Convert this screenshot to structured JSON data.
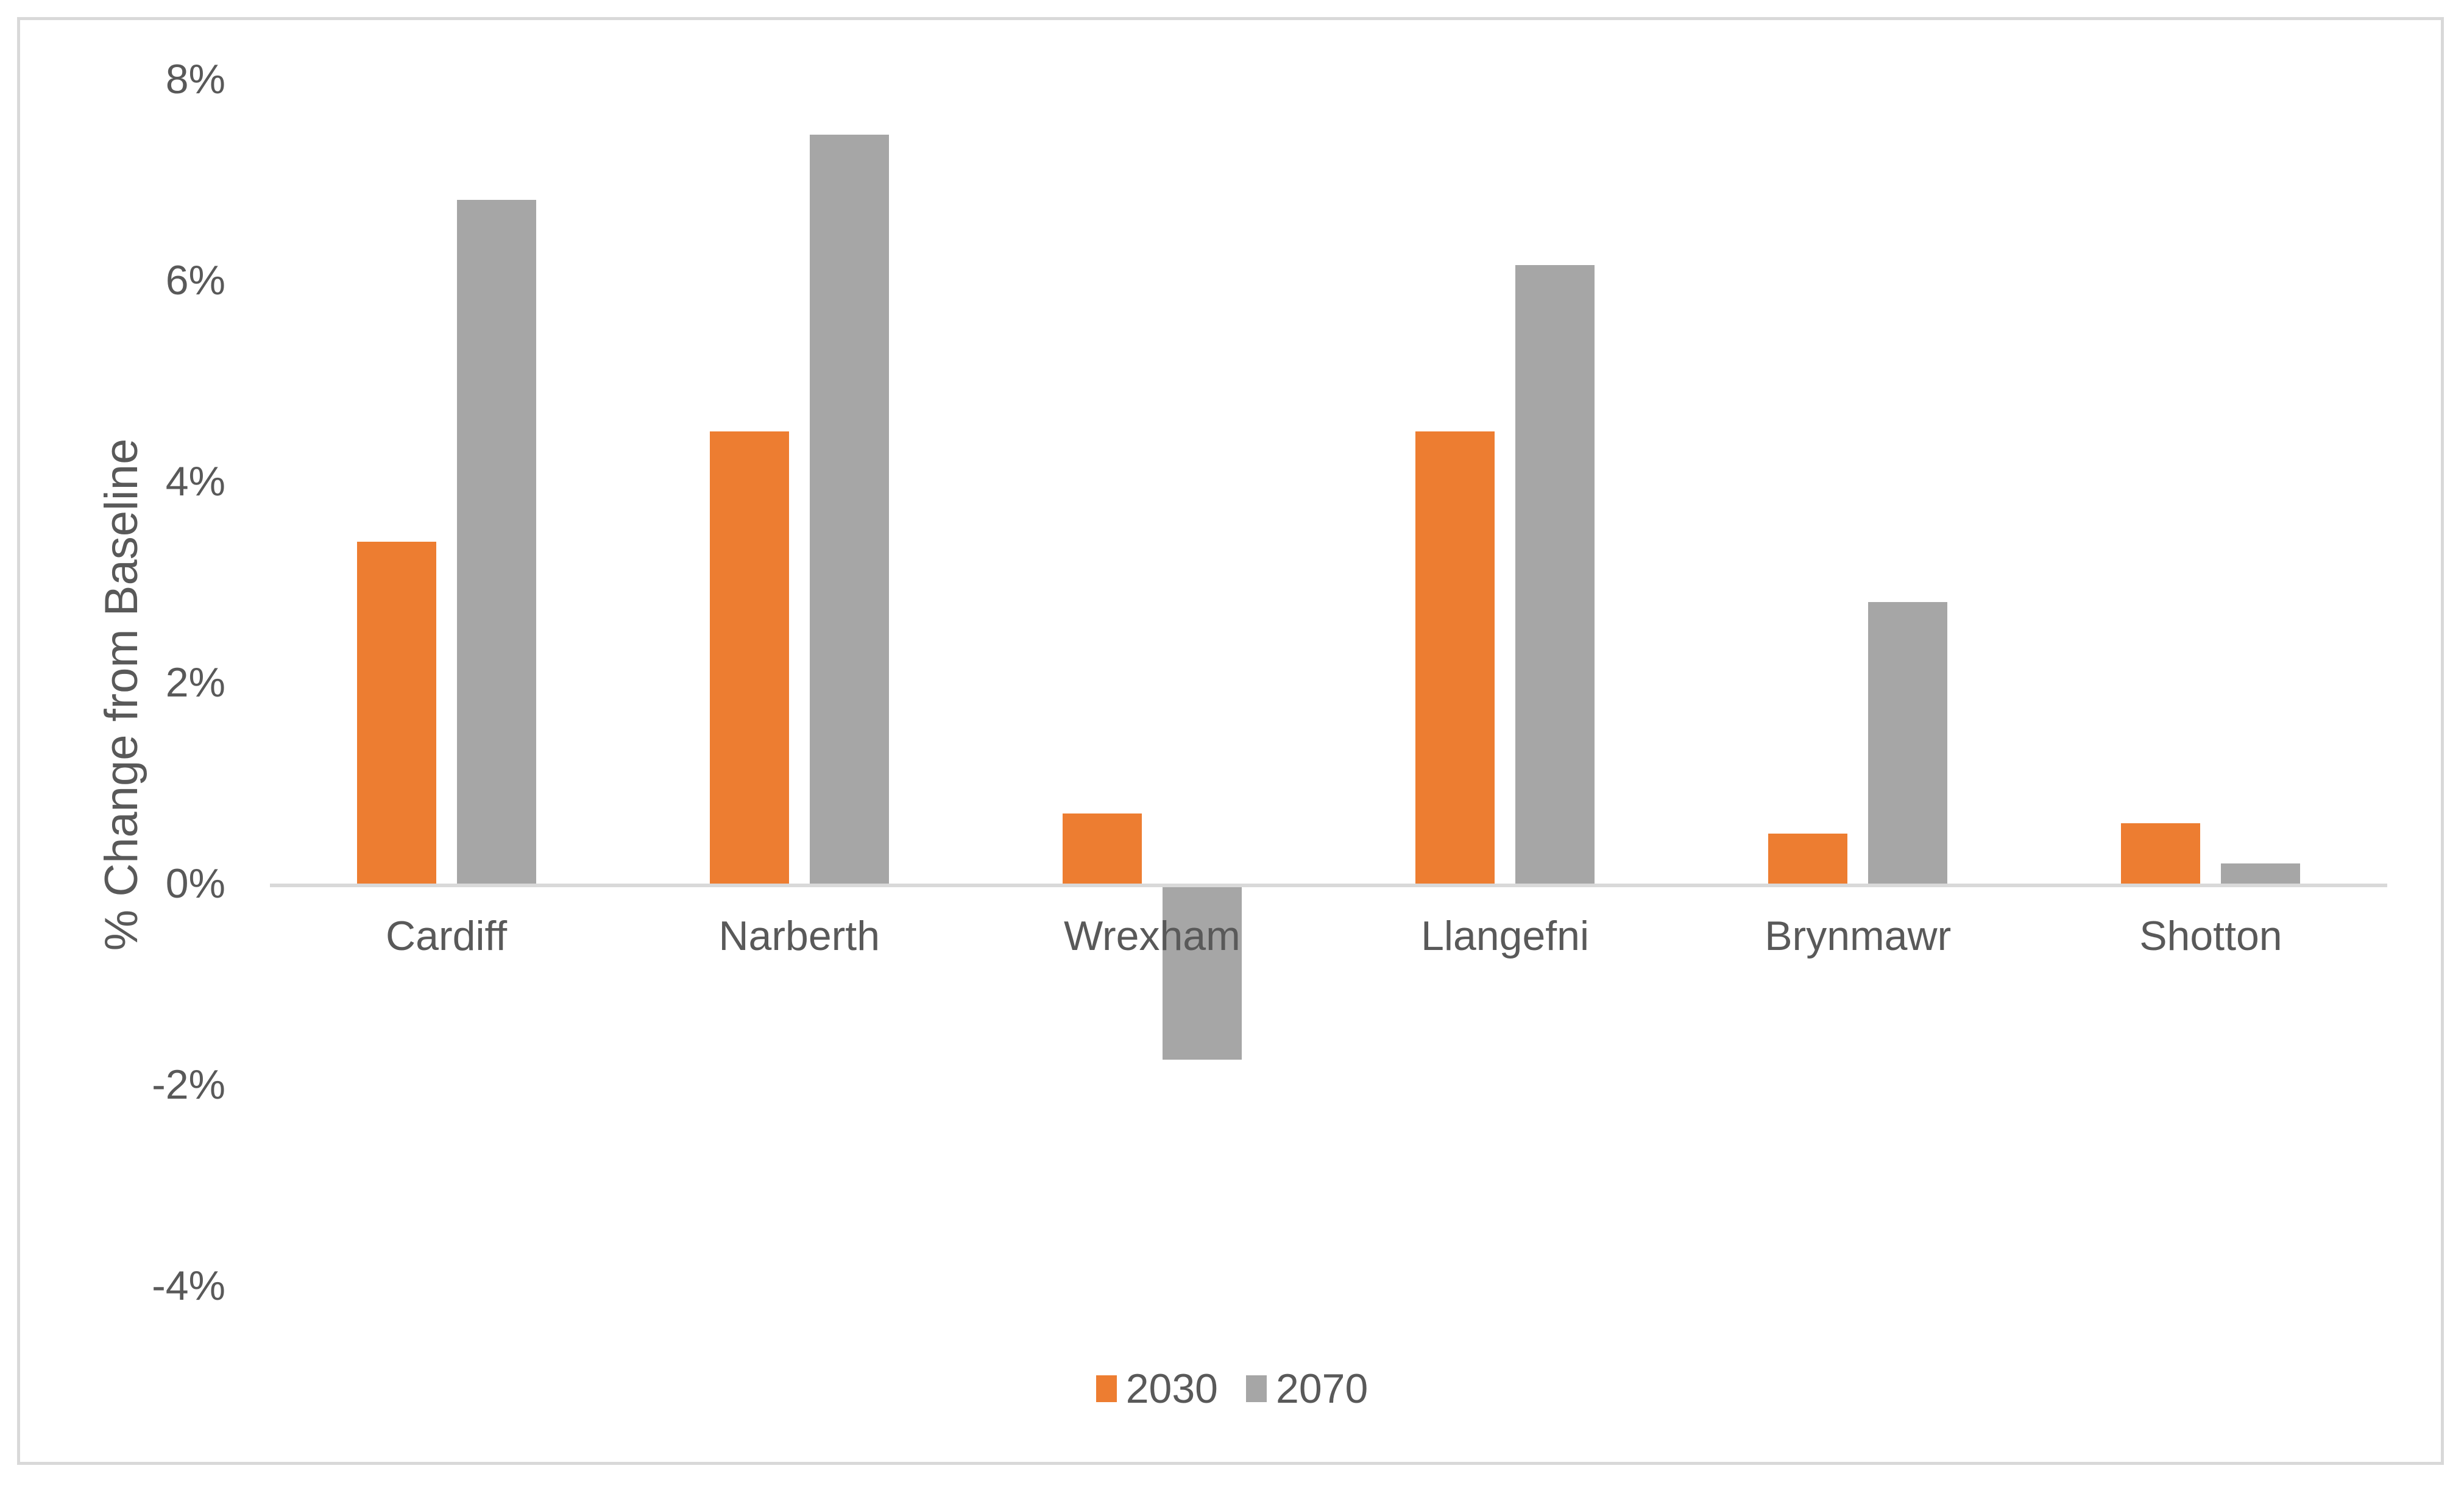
{
  "chart_data": {
    "type": "bar",
    "title": "",
    "xlabel": "",
    "ylabel": "% Change from Baseline",
    "categories": [
      "Cardiff",
      "Narberth",
      "Wrexham",
      "Llangefni",
      "Brynmawr",
      "Shotton"
    ],
    "series": [
      {
        "name": "2030",
        "color": "#ED7D31",
        "values": [
          3.4,
          4.5,
          0.7,
          4.5,
          0.5,
          0.6
        ]
      },
      {
        "name": "2070",
        "color": "#A6A6A6",
        "values": [
          6.8,
          7.45,
          -1.75,
          6.15,
          2.8,
          0.2
        ]
      }
    ],
    "yticks": {
      "values": [
        8,
        6,
        4,
        2,
        0,
        -2,
        -4
      ],
      "labels": [
        "8%",
        "6%",
        "4%",
        "2%",
        "0%",
        "-2%",
        "-4%"
      ]
    },
    "ylim": [
      -4.5,
      8.5
    ],
    "grid": false,
    "legend_position": "bottom",
    "axis_line_color": "#D9D9D9",
    "text_color": "#595959",
    "border_color": "#D9D9D9"
  }
}
